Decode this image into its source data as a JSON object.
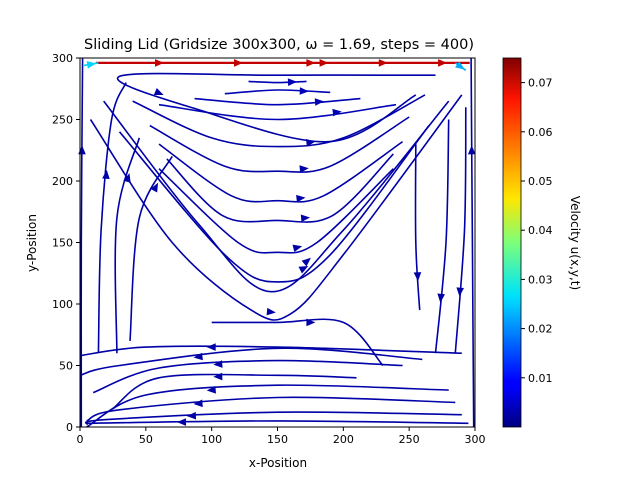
{
  "chart_data": {
    "type": "streamplot",
    "title": "Sliding Lid (Gridsize 300x300,  ω = 1.69, steps = 400)",
    "xlabel": "x-Position",
    "ylabel": "y-Position",
    "xlim": [
      0,
      300
    ],
    "ylim": [
      0,
      300
    ],
    "xticks": [
      "0",
      "50",
      "100",
      "150",
      "200",
      "250",
      "300"
    ],
    "yticks": [
      "0",
      "50",
      "100",
      "150",
      "200",
      "250",
      "300"
    ],
    "colorbar": {
      "label": "Velocity u(x,y,t)",
      "colormap": "jet",
      "range": [
        0.0,
        0.075
      ],
      "ticks": [
        "0.01",
        "0.02",
        "0.03",
        "0.04",
        "0.05",
        "0.06",
        "0.07"
      ]
    },
    "streamlines": [
      {
        "name": "lid",
        "speed": 0.07,
        "points": [
          [
            12,
            296
          ],
          [
            80,
            296
          ],
          [
            150,
            296
          ],
          [
            220,
            296
          ],
          [
            296,
            296
          ]
        ]
      },
      {
        "name": "upper-rim",
        "speed": 0.025,
        "points": [
          [
            3,
            294
          ],
          [
            14,
            296
          ]
        ]
      },
      {
        "name": "upper-rim-right",
        "speed": 0.022,
        "points": [
          [
            285,
            296
          ],
          [
            293,
            290
          ]
        ]
      },
      {
        "name": "inner-arc-1",
        "speed": 0.004,
        "points": [
          [
            110,
            271
          ],
          [
            150,
            274
          ],
          [
            190,
            272
          ]
        ]
      },
      {
        "name": "inner-arc-2",
        "speed": 0.004,
        "points": [
          [
            87,
            267
          ],
          [
            150,
            262
          ],
          [
            213,
            267
          ]
        ]
      },
      {
        "name": "inner-arc-3",
        "speed": 0.004,
        "points": [
          [
            60,
            262
          ],
          [
            150,
            250
          ],
          [
            240,
            262
          ]
        ]
      },
      {
        "name": "inner-arc-4",
        "speed": 0.004,
        "points": [
          [
            128,
            281
          ],
          [
            150,
            280
          ],
          [
            172,
            281
          ]
        ]
      },
      {
        "name": "loop-right",
        "speed": 0.003,
        "points": [
          [
            270,
            286
          ],
          [
            150,
            286
          ],
          [
            30,
            285
          ],
          [
            90,
            258
          ],
          [
            190,
            232
          ],
          [
            255,
            270
          ]
        ]
      },
      {
        "name": "v-arc-1",
        "speed": 0.003,
        "points": [
          [
            40,
            265
          ],
          [
            100,
            235
          ],
          [
            150,
            228
          ],
          [
            200,
            235
          ],
          [
            262,
            270
          ]
        ]
      },
      {
        "name": "v-arc-2",
        "speed": 0.003,
        "points": [
          [
            53,
            245
          ],
          [
            110,
            212
          ],
          [
            150,
            208
          ],
          [
            190,
            212
          ],
          [
            250,
            252
          ]
        ]
      },
      {
        "name": "v-arc-3",
        "speed": 0.003,
        "points": [
          [
            60,
            230
          ],
          [
            115,
            188
          ],
          [
            150,
            184
          ],
          [
            185,
            188
          ],
          [
            245,
            232
          ]
        ]
      },
      {
        "name": "v-arc-4",
        "speed": 0.003,
        "points": [
          [
            66,
            218
          ],
          [
            108,
            172
          ],
          [
            150,
            168
          ],
          [
            192,
            172
          ],
          [
            238,
            222
          ]
        ]
      },
      {
        "name": "v-arc-5",
        "speed": 0.003,
        "points": [
          [
            60,
            210
          ],
          [
            120,
            150
          ],
          [
            150,
            142
          ],
          [
            180,
            150
          ],
          [
            238,
            210
          ]
        ]
      },
      {
        "name": "v-arc-6",
        "speed": 0.003,
        "points": [
          [
            30,
            240
          ],
          [
            110,
            140
          ],
          [
            150,
            118
          ],
          [
            190,
            140
          ],
          [
            265,
            245
          ]
        ]
      },
      {
        "name": "v-arc-7",
        "speed": 0.003,
        "points": [
          [
            18,
            265
          ],
          [
            90,
            165
          ],
          [
            145,
            110
          ],
          [
            200,
            160
          ],
          [
            280,
            265
          ]
        ]
      },
      {
        "name": "v-arc-8",
        "speed": 0.003,
        "points": [
          [
            8,
            250
          ],
          [
            70,
            150
          ],
          [
            130,
            95
          ],
          [
            160,
            92
          ],
          [
            200,
            140
          ],
          [
            290,
            270
          ]
        ]
      },
      {
        "name": "left-wall",
        "speed": 0.003,
        "points": [
          [
            1,
            0
          ],
          [
            1,
            150
          ],
          [
            2,
            300
          ]
        ]
      },
      {
        "name": "left-inner",
        "speed": 0.003,
        "points": [
          [
            14,
            60
          ],
          [
            16,
            160
          ],
          [
            24,
            250
          ],
          [
            35,
            280
          ]
        ]
      },
      {
        "name": "left-inner-2",
        "speed": 0.003,
        "points": [
          [
            28,
            60
          ],
          [
            28,
            170
          ],
          [
            45,
            235
          ]
        ]
      },
      {
        "name": "left-inner-3",
        "speed": 0.003,
        "points": [
          [
            38,
            70
          ],
          [
            45,
            170
          ],
          [
            70,
            220
          ]
        ]
      },
      {
        "name": "right-wall",
        "speed": 0.003,
        "points": [
          [
            299,
            0
          ],
          [
            298,
            150
          ],
          [
            297,
            300
          ]
        ]
      },
      {
        "name": "right-inner",
        "speed": 0.003,
        "points": [
          [
            293,
            260
          ],
          [
            292,
            160
          ],
          [
            285,
            60
          ]
        ]
      },
      {
        "name": "right-inner-2",
        "speed": 0.003,
        "points": [
          [
            280,
            250
          ],
          [
            278,
            150
          ],
          [
            270,
            60
          ]
        ]
      },
      {
        "name": "right-inner-3",
        "speed": 0.003,
        "points": [
          [
            255,
            230
          ],
          [
            255,
            150
          ],
          [
            258,
            95
          ]
        ]
      },
      {
        "name": "bottom-band-top",
        "speed": 0.003,
        "points": [
          [
            290,
            60
          ],
          [
            150,
            65
          ],
          [
            50,
            65
          ],
          [
            0,
            58
          ]
        ]
      },
      {
        "name": "bottom-arc-1",
        "speed": 0.003,
        "points": [
          [
            260,
            55
          ],
          [
            150,
            64
          ],
          [
            30,
            50
          ],
          [
            0,
            42
          ]
        ]
      },
      {
        "name": "bottom-arc-2",
        "speed": 0.003,
        "points": [
          [
            245,
            50
          ],
          [
            150,
            54
          ],
          [
            60,
            48
          ],
          [
            10,
            28
          ]
        ]
      },
      {
        "name": "bottom-arc-3",
        "speed": 0.003,
        "points": [
          [
            210,
            40
          ],
          [
            150,
            42
          ],
          [
            60,
            40
          ],
          [
            25,
            15
          ]
        ]
      },
      {
        "name": "bottom-arc-4",
        "speed": 0.003,
        "points": [
          [
            280,
            30
          ],
          [
            150,
            34
          ],
          [
            50,
            26
          ],
          [
            5,
            0
          ]
        ]
      },
      {
        "name": "bottom-arc-5",
        "speed": 0.003,
        "points": [
          [
            285,
            20
          ],
          [
            150,
            24
          ],
          [
            30,
            14
          ],
          [
            5,
            5
          ]
        ]
      },
      {
        "name": "bottom-arc-6",
        "speed": 0.003,
        "points": [
          [
            290,
            10
          ],
          [
            150,
            12
          ],
          [
            20,
            6
          ],
          [
            5,
            2
          ]
        ]
      },
      {
        "name": "bottom-base",
        "speed": 0.003,
        "points": [
          [
            295,
            3
          ],
          [
            150,
            5
          ],
          [
            5,
            3
          ]
        ]
      },
      {
        "name": "center-knot",
        "speed": 0.003,
        "points": [
          [
            100,
            85
          ],
          [
            150,
            85
          ],
          [
            200,
            85
          ],
          [
            230,
            50
          ]
        ]
      }
    ]
  }
}
